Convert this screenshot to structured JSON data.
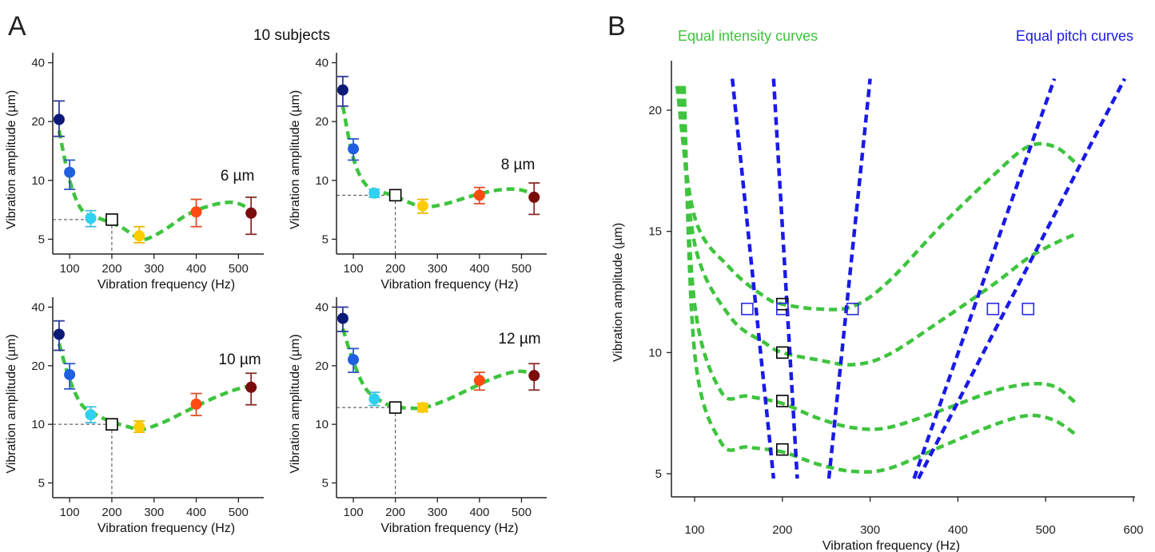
{
  "panel_a": {
    "letter": "A",
    "header": "10 subjects",
    "colors": {
      "fit": "#3ec43e",
      "reference_marker": "#000000",
      "guide": "#444444",
      "points": [
        "#0b1a78",
        "#1f5fe0",
        "#2fd0f0",
        "#ffcc00",
        "#ff4a12",
        "#7a0c0c"
      ],
      "errorbars": [
        "#2d3a9e",
        "#2d59c0",
        "#3ac2e0",
        "#e8b800",
        "#e24e2a",
        "#8a2a2a"
      ]
    }
  },
  "panel_b": {
    "letter": "B",
    "legend_intensity": "Equal intensity curves",
    "legend_pitch": "Equal pitch curves",
    "colors": {
      "intensity": "#3ec43e",
      "pitch": "#1a1ae6",
      "square_intensity": "#000000",
      "square_pitch": "#2a2ae0"
    }
  },
  "chart_data": [
    {
      "type": "scatter",
      "title": "6 µm",
      "xlabel": "Vibration frequency (Hz)",
      "ylabel": "Vibration amplitude (µm)",
      "xlim": [
        60,
        560
      ],
      "ylim": [
        4.2,
        45
      ],
      "yscale": "log",
      "xticks": [
        100,
        200,
        300,
        400,
        500
      ],
      "yticks": [
        5,
        10,
        20,
        40
      ],
      "series": [
        {
          "x": [
            75,
            100,
            150,
            265,
            400,
            530
          ],
          "values": [
            20.5,
            11,
            6.4,
            5.2,
            6.9,
            6.8
          ],
          "err_low": [
            16.8,
            9.0,
            5.8,
            4.8,
            5.8,
            5.3
          ],
          "err_high": [
            25.5,
            12.7,
            7.0,
            5.8,
            8.0,
            8.2
          ]
        }
      ],
      "reference": {
        "x": 200,
        "y": 6.3
      },
      "fit_curve": {
        "x": [
          75,
          100,
          130,
          170,
          220,
          260,
          280,
          320,
          380,
          440,
          490,
          530
        ],
        "y": [
          18,
          10,
          7.0,
          6.4,
          5.8,
          5.1,
          5.0,
          5.5,
          6.7,
          7.5,
          7.7,
          7.1
        ]
      }
    },
    {
      "type": "scatter",
      "title": "8 µm",
      "xlabel": "Vibration frequency (Hz)",
      "ylabel": "Vibration amplitude (µm)",
      "xlim": [
        60,
        560
      ],
      "ylim": [
        4.2,
        45
      ],
      "yscale": "log",
      "xticks": [
        100,
        200,
        300,
        400,
        500
      ],
      "yticks": [
        5,
        10,
        20,
        40
      ],
      "series": [
        {
          "x": [
            75,
            100,
            150,
            265,
            400,
            530
          ],
          "values": [
            29,
            14.5,
            8.6,
            7.4,
            8.4,
            8.2
          ],
          "err_low": [
            24,
            12.7,
            8.2,
            6.8,
            7.6,
            6.7
          ],
          "err_high": [
            34,
            16.3,
            9.0,
            8.0,
            9.2,
            9.7
          ]
        }
      ],
      "reference": {
        "x": 200,
        "y": 8.4
      },
      "fit_curve": {
        "x": [
          75,
          100,
          130,
          170,
          200,
          240,
          270,
          320,
          380,
          440,
          490,
          530
        ],
        "y": [
          24,
          13.0,
          9.5,
          8.7,
          8.3,
          7.6,
          7.3,
          7.6,
          8.3,
          8.9,
          9.0,
          8.5
        ]
      }
    },
    {
      "type": "scatter",
      "title": "10 µm",
      "xlabel": "Vibration frequency (Hz)",
      "ylabel": "Vibration amplitude (µm)",
      "xlim": [
        60,
        560
      ],
      "ylim": [
        4.2,
        45
      ],
      "yscale": "log",
      "xticks": [
        100,
        200,
        300,
        400,
        500
      ],
      "yticks": [
        5,
        10,
        20,
        40
      ],
      "series": [
        {
          "x": [
            75,
            100,
            150,
            265,
            400,
            530
          ],
          "values": [
            29,
            18,
            11.2,
            9.7,
            12.7,
            15.5
          ],
          "err_low": [
            24,
            15.2,
            10.2,
            9.1,
            11.1,
            12.6
          ],
          "err_high": [
            34,
            20.5,
            12.3,
            10.4,
            14.4,
            18.3
          ]
        }
      ],
      "reference": {
        "x": 200,
        "y": 10
      },
      "fit_curve": {
        "x": [
          75,
          100,
          130,
          170,
          200,
          240,
          270,
          320,
          380,
          440,
          490,
          530
        ],
        "y": [
          26,
          17,
          12.5,
          11.0,
          10.3,
          9.7,
          9.4,
          10.2,
          11.8,
          13.6,
          15.0,
          15.8
        ]
      }
    },
    {
      "type": "scatter",
      "title": "12 µm",
      "xlabel": "Vibration frequency (Hz)",
      "ylabel": "Vibration amplitude (µm)",
      "xlim": [
        60,
        560
      ],
      "ylim": [
        4.2,
        45
      ],
      "yscale": "log",
      "xticks": [
        100,
        200,
        300,
        400,
        500
      ],
      "yticks": [
        5,
        10,
        20,
        40
      ],
      "series": [
        {
          "x": [
            75,
            100,
            150,
            265,
            400,
            530
          ],
          "values": [
            35,
            21.5,
            13.5,
            12.2,
            16.8,
            17.8
          ],
          "err_low": [
            30,
            18.5,
            12.5,
            11.6,
            15.0,
            15.0
          ],
          "err_high": [
            40,
            24.5,
            14.6,
            12.8,
            18.5,
            20.5
          ]
        }
      ],
      "reference": {
        "x": 200,
        "y": 12.2
      },
      "fit_curve": {
        "x": [
          75,
          100,
          130,
          170,
          200,
          240,
          270,
          320,
          380,
          440,
          490,
          530
        ],
        "y": [
          31,
          21,
          15.2,
          13.0,
          12.3,
          12.1,
          12.2,
          13.3,
          15.3,
          17.5,
          18.7,
          18.3
        ]
      }
    },
    {
      "type": "line",
      "xlabel": "Vibration frequency (Hz)",
      "ylabel": "Vibration amplitude (µm)",
      "xlim": [
        70,
        600
      ],
      "ylim": [
        3.5,
        22
      ],
      "xticks": [
        100,
        200,
        300,
        400,
        500,
        600
      ],
      "yticks": [
        5,
        10,
        15,
        20
      ],
      "series": [
        {
          "name": "Equal intensity curves",
          "x": [
            80,
            100,
            140,
            180,
            200,
            240,
            280,
            320,
            380,
            440,
            480,
            510,
            535
          ],
          "y": [
            21,
            15.6,
            13.5,
            12.3,
            12.0,
            11.8,
            11.9,
            12.9,
            15.2,
            17.3,
            18.5,
            18.5,
            17.8
          ]
        },
        {
          "name": "Equal intensity curves",
          "x": [
            83,
            100,
            140,
            180,
            200,
            240,
            280,
            320,
            380,
            440,
            480,
            510,
            535
          ],
          "y": [
            21,
            14.5,
            11.5,
            10.4,
            10.0,
            9.7,
            9.5,
            9.9,
            11.3,
            12.8,
            13.9,
            14.5,
            14.9
          ]
        },
        {
          "name": "Equal intensity curves",
          "x": [
            86,
            100,
            130,
            160,
            200,
            240,
            280,
            320,
            380,
            440,
            480,
            510,
            535
          ],
          "y": [
            21,
            12.0,
            8.4,
            8.2,
            7.9,
            7.3,
            6.9,
            6.9,
            7.6,
            8.4,
            8.7,
            8.6,
            7.9
          ]
        },
        {
          "name": "Equal intensity curves",
          "x": [
            88,
            100,
            130,
            160,
            200,
            240,
            280,
            320,
            380,
            440,
            480,
            510,
            535
          ],
          "y": [
            21,
            10.0,
            6.3,
            6.1,
            5.9,
            5.4,
            5.1,
            5.2,
            6.1,
            7.0,
            7.4,
            7.2,
            6.6
          ]
        },
        {
          "name": "Equal pitch curves",
          "x": [
            143,
            190
          ],
          "y": [
            21.3,
            4.8
          ]
        },
        {
          "name": "Equal pitch curves",
          "x": [
            190,
            217
          ],
          "y": [
            21.3,
            4.8
          ]
        },
        {
          "name": "Equal pitch curves",
          "x": [
            253,
            300
          ],
          "y": [
            4.8,
            21.3
          ]
        },
        {
          "name": "Equal pitch curves",
          "x": [
            350,
            510
          ],
          "y": [
            4.8,
            21.3
          ]
        },
        {
          "name": "Equal pitch curves",
          "x": [
            355,
            590
          ],
          "y": [
            4.8,
            21.3
          ]
        }
      ],
      "intensity_points": {
        "x": [
          200,
          200,
          200,
          200
        ],
        "y": [
          12,
          10,
          8,
          6
        ]
      },
      "pitch_points": {
        "x": [
          160,
          200,
          280,
          440,
          480
        ],
        "y": [
          11.8,
          11.8,
          11.8,
          11.8,
          11.8
        ]
      }
    }
  ]
}
